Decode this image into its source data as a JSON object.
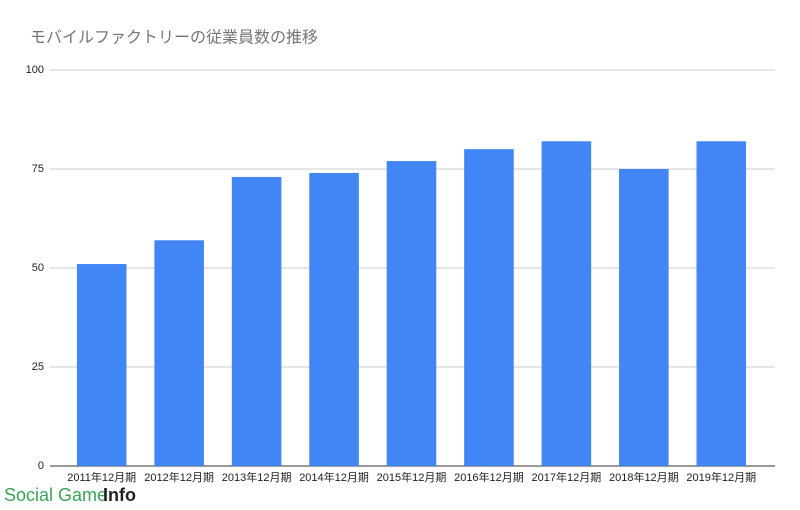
{
  "chart_data": {
    "type": "bar",
    "title": "モバイルファクトリーの従業員数の推移",
    "categories": [
      "2011年12月期",
      "2012年12月期",
      "2013年12月期",
      "2014年12月期",
      "2015年12月期",
      "2016年12月期",
      "2017年12月期",
      "2018年12月期",
      "2019年12月期"
    ],
    "values": [
      51,
      57,
      73,
      74,
      77,
      80,
      82,
      75,
      82
    ],
    "color": "#4285f4",
    "ylim": [
      0,
      100
    ],
    "yticks": [
      0,
      25,
      50,
      75,
      100
    ],
    "grid": true,
    "watermark": [
      "Social Game",
      "Info"
    ]
  }
}
